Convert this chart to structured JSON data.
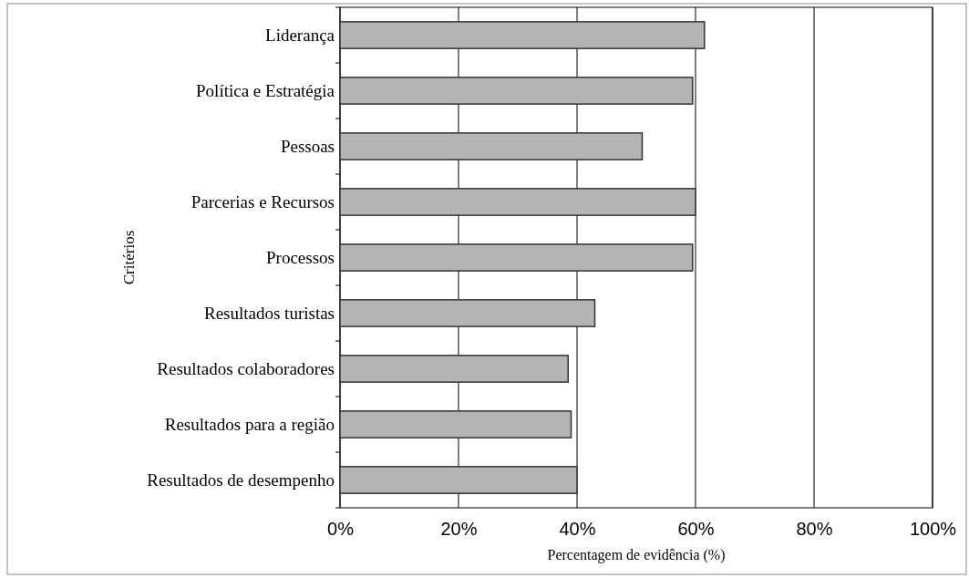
{
  "chart_data": {
    "type": "bar",
    "orientation": "horizontal",
    "xlabel": "Percentagem de evidência (%)",
    "ylabel": "Critérios",
    "categories": [
      "Liderança",
      "Política e Estratégia",
      "Pessoas",
      "Parcerias e Recursos",
      "Processos",
      "Resultados turistas",
      "Resultados colaboradores",
      "Resultados para a região",
      "Resultados de desempenho"
    ],
    "values": [
      61.5,
      59.5,
      51,
      60,
      59.5,
      43,
      38.5,
      39,
      40
    ],
    "color": "#b4b4b4",
    "xlim": [
      0,
      100
    ],
    "xticks": [
      {
        "value": 0,
        "label": "0%"
      },
      {
        "value": 20,
        "label": "20%"
      },
      {
        "value": 40,
        "label": "40%"
      },
      {
        "value": 60,
        "label": "60%"
      },
      {
        "value": 80,
        "label": "80%"
      },
      {
        "value": 100,
        "label": "100%"
      }
    ],
    "grid": "x"
  }
}
